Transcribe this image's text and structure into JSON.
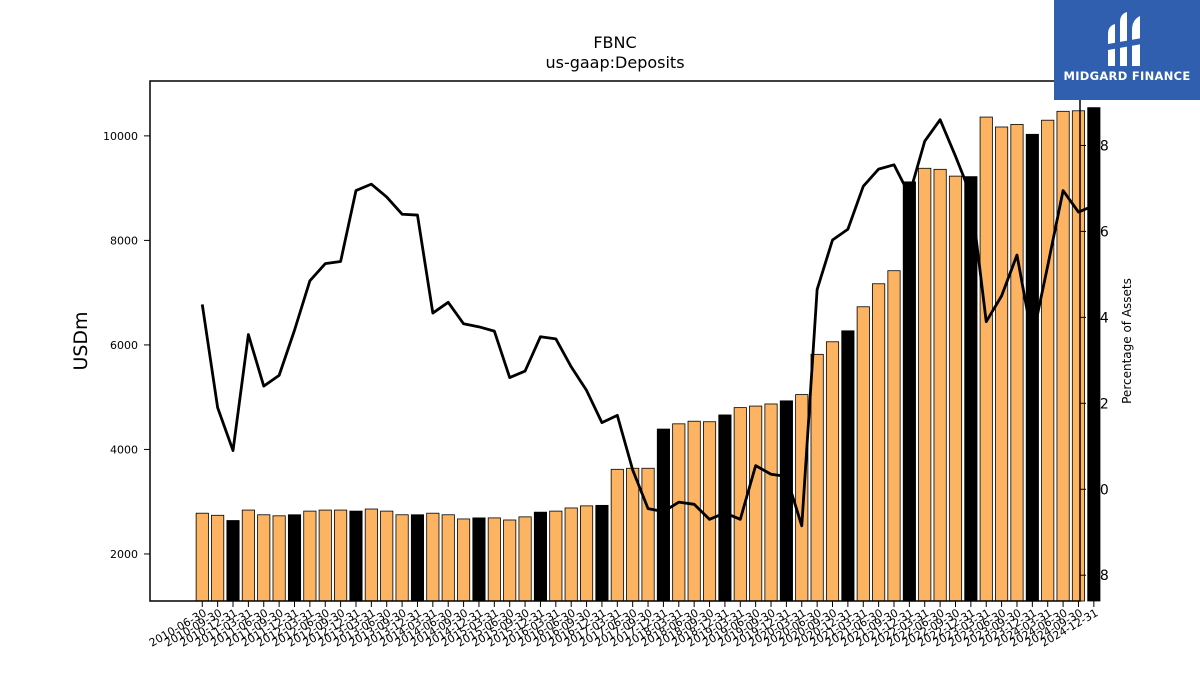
{
  "chart_data": {
    "type": "bar",
    "title": "FBNC",
    "subtitle": "us-gaap:Deposits",
    "ylabel": "USDm",
    "y2label": "Percentage of Assets",
    "ylim": [
      1100,
      11050
    ],
    "y2lim": [
      77.4,
      89.5
    ],
    "yticks": [
      2000,
      4000,
      6000,
      8000,
      10000
    ],
    "y2ticks": [
      78,
      80,
      82,
      84,
      86,
      88
    ],
    "categories": [
      "2010-06-30",
      "2010-09-30",
      "2010-12-31",
      "2011-03-31",
      "2011-06-30",
      "2011-09-30",
      "2011-12-31",
      "2012-03-31",
      "2012-06-30",
      "2012-09-30",
      "2012-12-31",
      "2013-03-31",
      "2013-06-30",
      "2013-09-30",
      "2013-12-31",
      "2014-03-31",
      "2014-06-30",
      "2014-09-30",
      "2014-12-31",
      "2015-03-31",
      "2015-06-30",
      "2015-09-30",
      "2015-12-31",
      "2016-03-31",
      "2016-06-30",
      "2016-09-30",
      "2016-12-31",
      "2017-03-31",
      "2017-06-30",
      "2017-09-30",
      "2017-12-31",
      "2018-03-31",
      "2018-06-30",
      "2018-09-30",
      "2018-12-31",
      "2019-03-31",
      "2019-06-30",
      "2019-09-30",
      "2019-12-31",
      "2020-03-31",
      "2020-06-30",
      "2020-09-30",
      "2020-12-31",
      "2021-03-31",
      "2021-06-30",
      "2021-09-30",
      "2021-12-31",
      "2022-03-31",
      "2022-06-30",
      "2022-09-30",
      "2022-12-31",
      "2023-03-31",
      "2023-06-30",
      "2023-09-30",
      "2023-12-31",
      "2024-03-31",
      "2024-06-30",
      "2024-09-30",
      "2024-12-31"
    ],
    "series": [
      {
        "type": "bar",
        "values": [
          2780,
          2740,
          2640,
          2840,
          2750,
          2730,
          2750,
          2820,
          2840,
          2840,
          2820,
          2860,
          2820,
          2750,
          2750,
          2780,
          2750,
          2670,
          2690,
          2690,
          2650,
          2710,
          2800,
          2820,
          2880,
          2920,
          2930,
          3620,
          3640,
          3640,
          4390,
          4490,
          4540,
          4530,
          4660,
          4800,
          4830,
          4870,
          4930,
          5050,
          5820,
          6060,
          6270,
          6730,
          7170,
          7420,
          9120,
          9380,
          9360,
          9230,
          9220,
          10360,
          10170,
          10220,
          10030,
          10300,
          10470,
          10480,
          10540
        ],
        "colors": [
          "orange",
          "orange",
          "black",
          "orange",
          "orange",
          "orange",
          "black",
          "orange",
          "orange",
          "orange",
          "black",
          "orange",
          "orange",
          "orange",
          "black",
          "orange",
          "orange",
          "orange",
          "black",
          "orange",
          "orange",
          "orange",
          "black",
          "orange",
          "orange",
          "orange",
          "black",
          "orange",
          "orange",
          "orange",
          "black",
          "orange",
          "orange",
          "orange",
          "black",
          "orange",
          "orange",
          "orange",
          "black",
          "orange",
          "orange",
          "orange",
          "black",
          "orange",
          "orange",
          "orange",
          "black",
          "orange",
          "orange",
          "orange",
          "black",
          "orange",
          "orange",
          "orange",
          "black",
          "orange",
          "orange",
          "orange",
          "black"
        ]
      },
      {
        "type": "line",
        "axis": "right",
        "values": [
          84.3,
          81.9,
          80.9,
          83.6,
          82.4,
          82.65,
          83.7,
          84.85,
          85.25,
          85.3,
          86.95,
          87.1,
          86.8,
          86.4,
          86.38,
          84.1,
          84.35,
          83.85,
          83.78,
          83.68,
          82.6,
          82.75,
          83.55,
          83.5,
          82.85,
          82.3,
          81.55,
          81.72,
          80.45,
          79.55,
          79.48,
          79.7,
          79.65,
          79.3,
          79.45,
          79.3,
          80.55,
          80.35,
          80.3,
          79.15,
          84.65,
          85.8,
          86.05,
          87.05,
          87.45,
          87.55,
          86.85,
          88.1,
          88.6,
          87.75,
          86.85,
          83.9,
          84.5,
          85.45,
          83.5,
          85.2,
          86.95,
          86.45,
          86.6
        ]
      }
    ],
    "colors": {
      "orange": "#fdb462",
      "black": "#000000",
      "line": "#000000"
    },
    "grid": false,
    "legend": "none"
  },
  "logo": {
    "text": "MIDGARD FINANCE",
    "background": "#2f5fae"
  }
}
